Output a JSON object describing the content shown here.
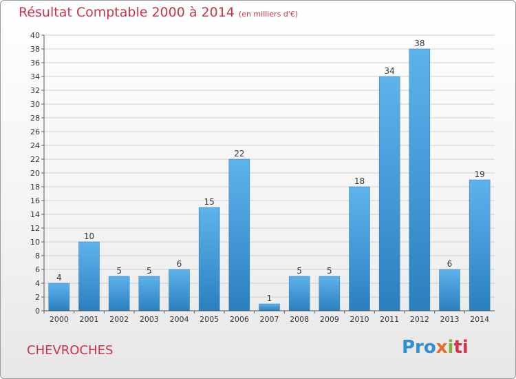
{
  "chart_data": {
    "type": "bar",
    "title": "Résultat Comptable 2000 à 2014",
    "subtitle": "(en milliers d'€)",
    "categories": [
      "2000",
      "2001",
      "2002",
      "2003",
      "2004",
      "2005",
      "2006",
      "2007",
      "2008",
      "2009",
      "2010",
      "2011",
      "2012",
      "2013",
      "2014"
    ],
    "values": [
      4,
      10,
      5,
      5,
      6,
      15,
      22,
      1,
      5,
      5,
      18,
      34,
      38,
      6,
      19
    ],
    "ylim": [
      0,
      40
    ],
    "ytick_step": 2,
    "grid": true,
    "bar_color": "#3a97d9"
  },
  "commune": "CHEVROCHES",
  "logo": {
    "p1": "Pro",
    "p2": "x",
    "p3": "i",
    "p4": "ti"
  }
}
